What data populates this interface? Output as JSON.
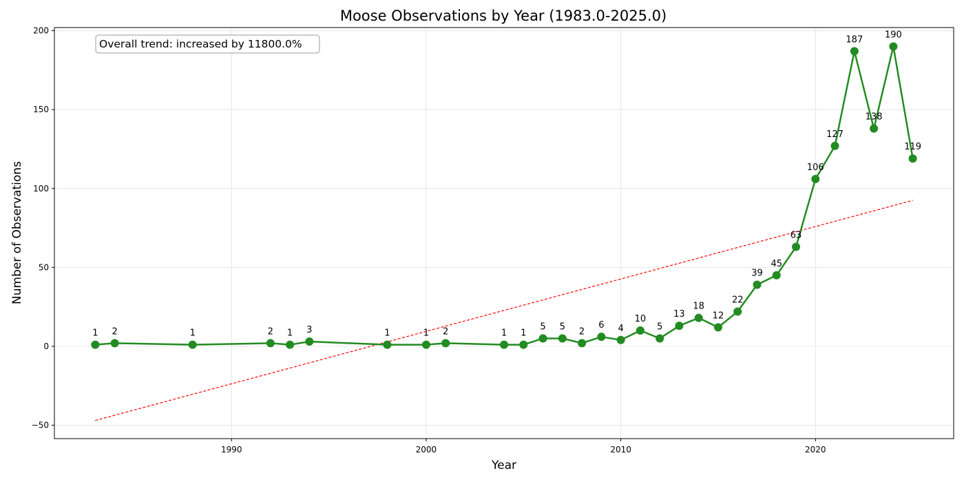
{
  "chart_data": {
    "type": "line",
    "title": "Moose Observations by Year (1983.0-2025.0)",
    "xlabel": "Year",
    "ylabel": "Number of Observations",
    "annotation": "Overall trend: increased by 11800.0%",
    "xlim": [
      1980.9,
      2027.1
    ],
    "ylim": [
      -58.5,
      202
    ],
    "x_ticks": [
      1990,
      2000,
      2010,
      2020
    ],
    "y_ticks": [
      -50,
      0,
      50,
      100,
      150,
      200
    ],
    "grid": true,
    "series": [
      {
        "color": "#228b22",
        "x": [
          1983,
          1984,
          1988,
          1992,
          1993,
          1994,
          1998,
          2000,
          2001,
          2004,
          2005,
          2006,
          2007,
          2008,
          2009,
          2010,
          2011,
          2012,
          2013,
          2014,
          2015,
          2016,
          2017,
          2018,
          2019,
          2020,
          2021,
          2022,
          2023,
          2024,
          2025
        ],
        "y": [
          1,
          2,
          1,
          2,
          1,
          3,
          1,
          1,
          2,
          1,
          1,
          5,
          5,
          2,
          6,
          4,
          10,
          5,
          13,
          18,
          12,
          22,
          39,
          45,
          63,
          106,
          127,
          187,
          138,
          190,
          119
        ]
      }
    ],
    "trendline": {
      "color": "#ff0000",
      "style": "dashed",
      "x": [
        1983,
        2025
      ],
      "y": [
        -47,
        92.5
      ]
    }
  }
}
